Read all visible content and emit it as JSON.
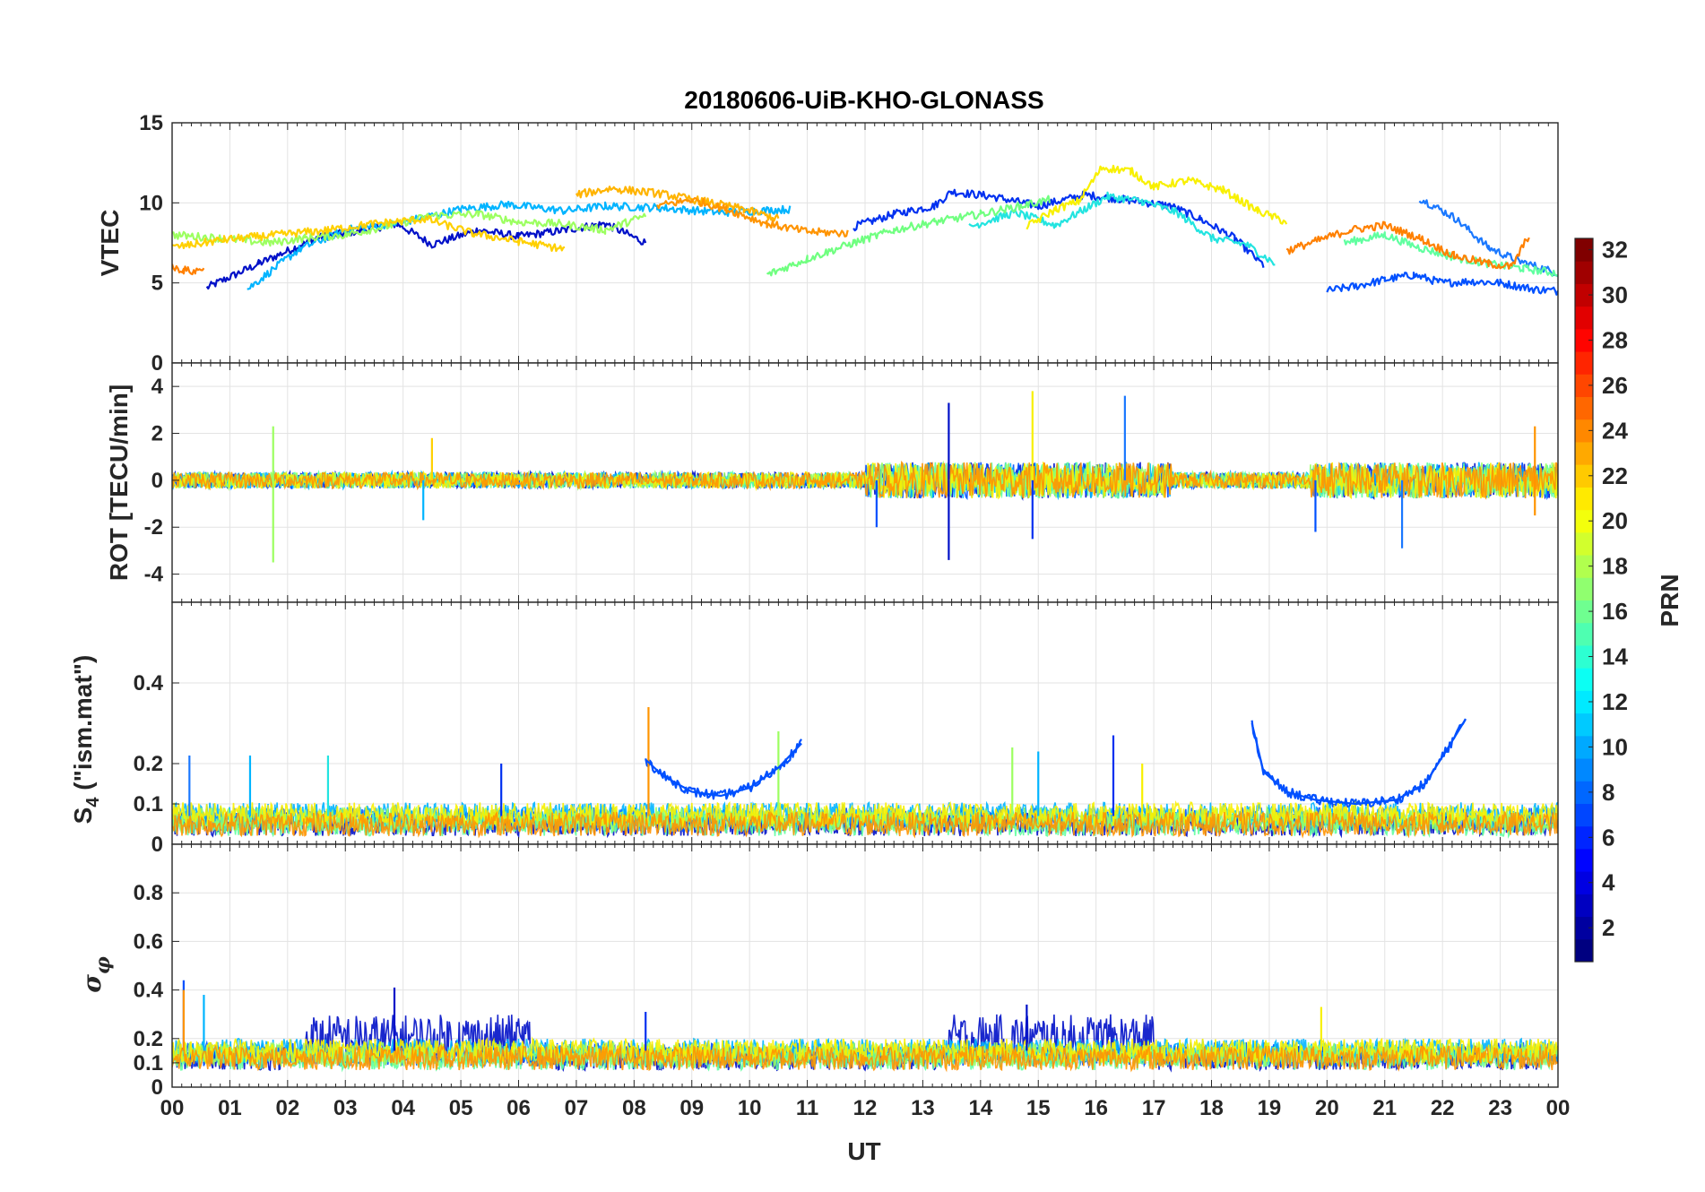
{
  "chart_data": {
    "type": "line",
    "title": "20180606-UiB-KHO-GLONASS",
    "xlabel": "UT",
    "x_range": [
      0,
      24
    ],
    "x_tick_labels": [
      "00",
      "01",
      "02",
      "03",
      "04",
      "05",
      "06",
      "07",
      "08",
      "09",
      "10",
      "11",
      "12",
      "13",
      "14",
      "15",
      "16",
      "17",
      "18",
      "19",
      "20",
      "21",
      "22",
      "23",
      "00"
    ],
    "grid": true,
    "colorbar": {
      "label": "PRN",
      "range": [
        1,
        32
      ],
      "ticks": [
        2,
        4,
        6,
        8,
        10,
        12,
        14,
        16,
        18,
        20,
        22,
        24,
        26,
        28,
        30,
        32
      ],
      "colormap": "jet",
      "placement": "right"
    },
    "panels": [
      {
        "id": "vtec",
        "ylabel": "VTEC",
        "ylim": [
          0,
          15
        ],
        "yticks": [
          0,
          5,
          10,
          15
        ],
        "series": [
          {
            "prn": 2,
            "color": "#0010c8",
            "x": [
              0.6,
              1.5,
              2.5,
              3.3,
              3.9,
              4.5,
              5.3,
              6.0,
              6.8,
              7.5,
              8.2
            ],
            "y": [
              4.7,
              6.2,
              7.8,
              8.3,
              8.7,
              7.4,
              8.3,
              7.9,
              8.3,
              8.7,
              7.5
            ]
          },
          {
            "prn": 4,
            "color": "#0030f0",
            "x": [
              11.8,
              12.5,
              13.2,
              13.5,
              14.2,
              15.0,
              15.8,
              16.5,
              17.3,
              17.8,
              18.4,
              18.9
            ],
            "y": [
              8.5,
              9.3,
              9.8,
              10.7,
              10.4,
              9.8,
              10.5,
              10.2,
              9.8,
              9.0,
              7.8,
              6.1
            ]
          },
          {
            "prn": 6,
            "color": "#0050ff",
            "x": [
              20.0,
              20.5,
              21.0,
              21.5,
              22.0,
              22.5,
              23.0,
              23.6,
              24.0
            ],
            "y": [
              4.5,
              4.8,
              5.2,
              5.5,
              5.0,
              5.1,
              5.0,
              4.6,
              4.5
            ]
          },
          {
            "prn": 8,
            "color": "#1a78ff",
            "x": [
              21.6,
              22.2,
              22.8,
              23.3,
              24.0
            ],
            "y": [
              10.3,
              9.1,
              7.2,
              6.4,
              5.6
            ]
          },
          {
            "prn": 10,
            "color": "#00b4ff",
            "x": [
              1.3,
              2.2,
              3.0,
              4.0,
              5.0,
              5.8,
              6.8,
              7.5,
              8.4,
              9.5,
              10.7
            ],
            "y": [
              4.6,
              7.1,
              8.3,
              8.8,
              9.6,
              9.9,
              9.5,
              9.8,
              9.7,
              9.4,
              9.6
            ]
          },
          {
            "prn": 12,
            "color": "#22e4e0",
            "x": [
              13.8,
              14.6,
              15.3,
              16.2,
              16.8,
              17.4,
              18.0,
              18.6,
              19.1
            ],
            "y": [
              8.5,
              9.4,
              8.6,
              10.4,
              10.1,
              9.4,
              7.8,
              7.4,
              6.2
            ]
          },
          {
            "prn": 14,
            "color": "#60ffa0",
            "x": [
              20.3,
              21.0,
              21.6,
              22.2,
              22.8,
              23.4,
              24.0
            ],
            "y": [
              7.5,
              8.0,
              7.2,
              6.6,
              6.2,
              5.9,
              5.6
            ]
          },
          {
            "prn": 16,
            "color": "#9cff60",
            "x": [
              0.0,
              0.8,
              1.7,
              2.3,
              3.0,
              3.8,
              4.5,
              5.3,
              6.0,
              6.7,
              7.5,
              8.2
            ],
            "y": [
              8.0,
              7.8,
              7.5,
              7.8,
              8.0,
              8.6,
              9.2,
              9.3,
              8.8,
              8.7,
              8.3,
              9.2
            ]
          },
          {
            "prn": 17,
            "color": "#70ff80",
            "x": [
              10.3,
              11.0,
              11.8,
              12.5,
              13.2,
              14.0,
              14.7,
              15.2
            ],
            "y": [
              5.5,
              6.5,
              7.5,
              8.3,
              8.8,
              9.3,
              9.8,
              10.2
            ]
          },
          {
            "prn": 20,
            "color": "#f8f000",
            "x": [
              14.8,
              15.3,
              15.7,
              16.1,
              16.6,
              17.0,
              17.6,
              18.2,
              18.8,
              19.3
            ],
            "y": [
              8.5,
              9.6,
              10.1,
              12.2,
              12.0,
              11.0,
              11.4,
              10.8,
              9.5,
              8.8
            ]
          },
          {
            "prn": 21,
            "color": "#ffd000",
            "x": [
              0.0,
              0.9,
              1.8,
              2.7,
              3.5,
              4.4,
              5.2,
              6.0,
              6.8
            ],
            "y": [
              7.2,
              7.7,
              8.0,
              8.3,
              8.7,
              9.0,
              8.1,
              7.6,
              7.1
            ]
          },
          {
            "prn": 22,
            "color": "#ffb400",
            "x": [
              7.0,
              7.6,
              8.4,
              9.2,
              9.9,
              10.5
            ],
            "y": [
              10.5,
              10.9,
              10.6,
              10.1,
              9.6,
              9.0
            ]
          },
          {
            "prn": 23,
            "color": "#ff9400",
            "x": [
              8.4,
              9.0,
              9.6,
              10.3,
              11.0,
              11.7
            ],
            "y": [
              9.8,
              10.2,
              9.6,
              8.7,
              8.2,
              8.1
            ]
          },
          {
            "prn": 24,
            "color": "#ff8000",
            "x": [
              0.0,
              0.2,
              0.4,
              0.55
            ],
            "y": [
              6.0,
              5.8,
              5.7,
              6.0
            ]
          },
          {
            "prn": 24,
            "color": "#ff8000",
            "x": [
              19.3,
              19.8,
              20.4,
              21.0,
              21.6,
              22.2,
              22.8,
              23.2,
              23.5
            ],
            "y": [
              7.0,
              7.6,
              8.3,
              8.6,
              7.8,
              6.7,
              6.2,
              6.0,
              8.0
            ]
          }
        ]
      },
      {
        "id": "rot",
        "ylabel": "ROT [TECU/min]",
        "ylim": [
          -5.2,
          5.0
        ],
        "yticks": [
          -4,
          -2,
          0,
          2,
          4
        ],
        "spikes": [
          {
            "x": 1.75,
            "y": -3.5,
            "color": "#9cff60"
          },
          {
            "x": 1.75,
            "y": 2.3,
            "color": "#9cff60"
          },
          {
            "x": 4.5,
            "y": 1.8,
            "color": "#ffd000"
          },
          {
            "x": 4.35,
            "y": -1.7,
            "color": "#00b4ff"
          },
          {
            "x": 12.2,
            "y": -2.0,
            "color": "#0050ff"
          },
          {
            "x": 13.45,
            "y": 3.3,
            "color": "#0010c8"
          },
          {
            "x": 13.45,
            "y": -3.4,
            "color": "#0010c8"
          },
          {
            "x": 14.9,
            "y": 3.8,
            "color": "#f8f000"
          },
          {
            "x": 14.9,
            "y": -2.5,
            "color": "#0030f0"
          },
          {
            "x": 16.5,
            "y": 3.6,
            "color": "#1a78ff"
          },
          {
            "x": 19.8,
            "y": -2.2,
            "color": "#0050ff"
          },
          {
            "x": 21.3,
            "y": -2.9,
            "color": "#1a78ff"
          },
          {
            "x": 23.6,
            "y": 2.3,
            "color": "#ff9400"
          },
          {
            "x": 23.6,
            "y": -1.5,
            "color": "#ff9400"
          }
        ],
        "series_colors": [
          "#0010c8",
          "#0050ff",
          "#00b4ff",
          "#60ffa0",
          "#9cff60",
          "#f8f000",
          "#ff9400"
        ]
      },
      {
        "id": "s4",
        "ylabel": "S4 (\"ism.mat\")",
        "ylim": [
          0,
          0.6
        ],
        "yticks": [
          0,
          0.1,
          0.2,
          0.4
        ],
        "series": [
          {
            "prn": 6,
            "color": "#0050ff",
            "x": [
              8.2,
              8.5,
              9.0,
              9.5,
              10.0,
              10.5,
              10.9
            ],
            "y": [
              0.21,
              0.17,
              0.13,
              0.12,
              0.14,
              0.19,
              0.25
            ]
          },
          {
            "prn": 6,
            "color": "#0050ff",
            "x": [
              18.7,
              18.9,
              19.3,
              19.8,
              20.5,
              21.2,
              21.7,
              22.1,
              22.4
            ],
            "y": [
              0.3,
              0.18,
              0.13,
              0.11,
              0.1,
              0.11,
              0.15,
              0.24,
              0.31
            ]
          }
        ],
        "spikes": [
          {
            "x": 8.25,
            "y": 0.34,
            "color": "#ff9400"
          },
          {
            "x": 0.3,
            "y": 0.22,
            "color": "#1a78ff"
          },
          {
            "x": 1.35,
            "y": 0.22,
            "color": "#00b4ff"
          },
          {
            "x": 2.7,
            "y": 0.22,
            "color": "#22e4e0"
          },
          {
            "x": 5.7,
            "y": 0.2,
            "color": "#0030f0"
          },
          {
            "x": 10.5,
            "y": 0.28,
            "color": "#9cff60"
          },
          {
            "x": 14.55,
            "y": 0.24,
            "color": "#9cff60"
          },
          {
            "x": 15.0,
            "y": 0.23,
            "color": "#00b4ff"
          },
          {
            "x": 16.3,
            "y": 0.27,
            "color": "#0030f0"
          },
          {
            "x": 16.8,
            "y": 0.2,
            "color": "#f8f000"
          }
        ],
        "series_colors": [
          "#0010c8",
          "#0050ff",
          "#00b4ff",
          "#60ffa0",
          "#9cff60",
          "#f8f000",
          "#ff9400"
        ]
      },
      {
        "id": "sigma_phi",
        "ylabel": "σφ",
        "ylim": [
          0,
          1.0
        ],
        "yticks": [
          0,
          0.1,
          0.2,
          0.4,
          0.6,
          0.8
        ],
        "spikes": [
          {
            "x": 0.2,
            "y": 0.44,
            "color": "#0050ff"
          },
          {
            "x": 0.2,
            "y": 0.4,
            "color": "#ff9400"
          },
          {
            "x": 0.55,
            "y": 0.38,
            "color": "#00b4ff"
          },
          {
            "x": 3.85,
            "y": 0.41,
            "color": "#0010c8"
          },
          {
            "x": 8.2,
            "y": 0.31,
            "color": "#0030f0"
          },
          {
            "x": 14.8,
            "y": 0.34,
            "color": "#0010c8"
          },
          {
            "x": 19.9,
            "y": 0.33,
            "color": "#f8f000"
          }
        ],
        "series_colors": [
          "#0010c8",
          "#0050ff",
          "#00b4ff",
          "#60ffa0",
          "#9cff60",
          "#f8f000",
          "#ff9400"
        ]
      }
    ]
  }
}
